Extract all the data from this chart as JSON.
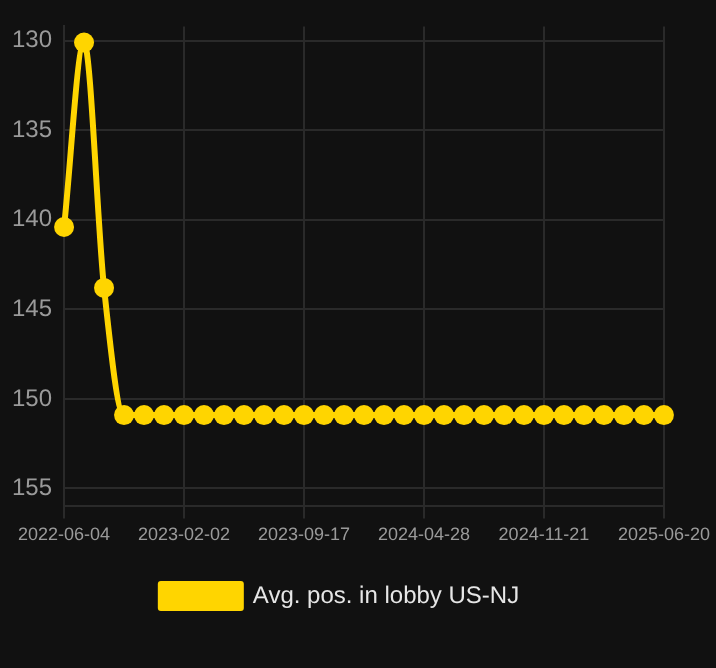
{
  "chart_data": {
    "type": "line",
    "categories": [
      "2022-06-04",
      null,
      null,
      null,
      null,
      null,
      "2023-02-02",
      null,
      null,
      null,
      null,
      null,
      "2023-09-17",
      null,
      null,
      null,
      null,
      null,
      "2024-04-28",
      null,
      null,
      null,
      null,
      null,
      "2024-11-21",
      null,
      null,
      null,
      null,
      null,
      "2025-06-20"
    ],
    "series": [
      {
        "name": "Avg. pos. in lobby US-NJ",
        "color": "#ffd500",
        "values": [
          140.4,
          130.1,
          143.8,
          150.9,
          150.9,
          150.9,
          150.9,
          150.9,
          150.9,
          150.9,
          150.9,
          150.9,
          150.9,
          150.9,
          150.9,
          150.9,
          150.9,
          150.9,
          150.9,
          150.9,
          150.9,
          150.9,
          150.9,
          150.9,
          150.9,
          150.9,
          150.9,
          150.9,
          150.9,
          150.9,
          150.9
        ]
      }
    ],
    "ylim": [
      156,
      129.2
    ],
    "yticks": [
      130,
      135,
      140,
      145,
      150,
      155
    ],
    "grid": true,
    "legend": "bottom",
    "marker": "circle",
    "line_style": "solid"
  }
}
